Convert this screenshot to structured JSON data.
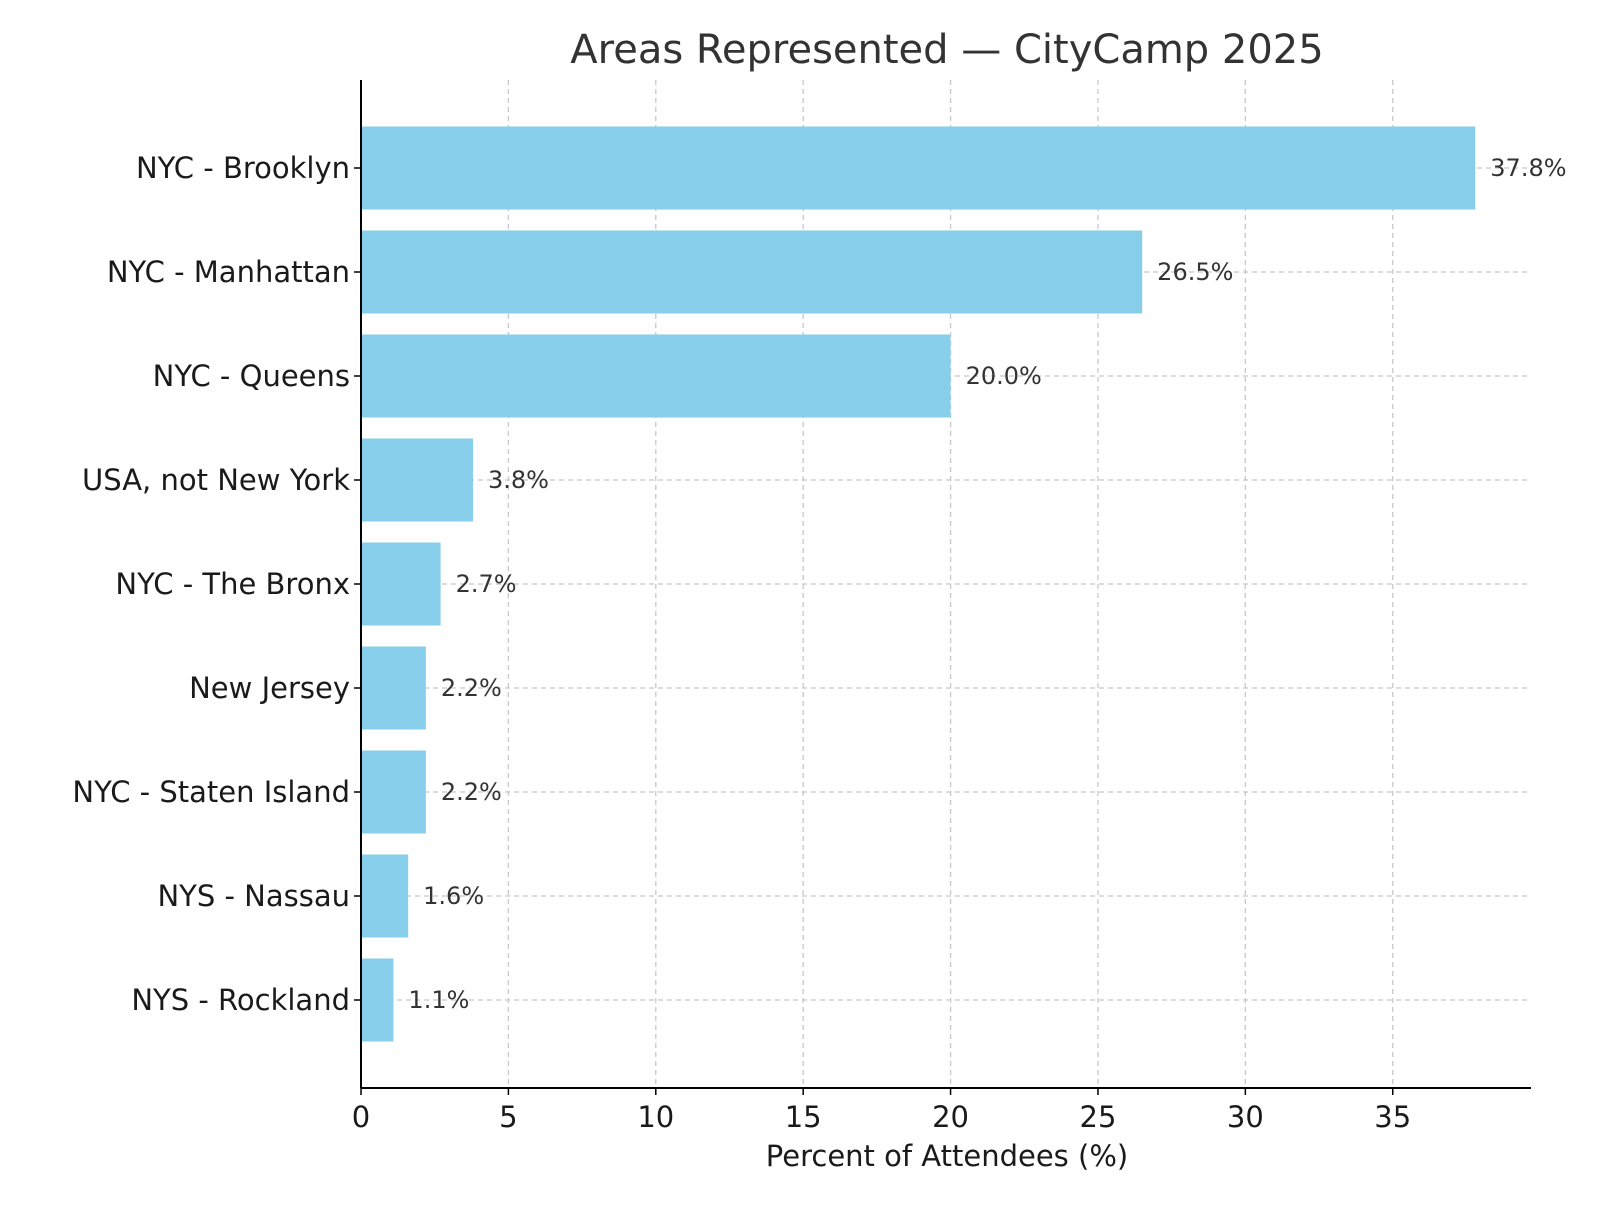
{
  "chart_data": {
    "type": "bar",
    "orientation": "horizontal",
    "title": "Areas Represented — CityCamp 2025",
    "xlabel": "Percent of Attendees (%)",
    "ylabel": "",
    "categories": [
      "NYC - Brooklyn",
      "NYC - Manhattan",
      "NYC - Queens",
      "USA, not New York",
      "NYC - The Bronx",
      "New Jersey",
      "NYC - Staten Island",
      "NYS - Nassau",
      "NYS - Rockland"
    ],
    "values": [
      37.8,
      26.5,
      20.0,
      3.8,
      2.7,
      2.2,
      2.2,
      1.6,
      1.1
    ],
    "value_labels": [
      "37.8%",
      "26.5%",
      "20.0%",
      "3.8%",
      "2.7%",
      "2.2%",
      "2.2%",
      "1.6%",
      "1.1%"
    ],
    "xlim": [
      0,
      39.69
    ],
    "xticks": [
      0,
      5,
      10,
      15,
      20,
      25,
      30,
      35
    ],
    "xtick_labels": [
      "0",
      "5",
      "10",
      "15",
      "20",
      "25",
      "30",
      "35"
    ],
    "grid": true,
    "grid_style": "dashed",
    "bar_color": "#87CEEB",
    "grid_color": "#c8c8c8"
  }
}
